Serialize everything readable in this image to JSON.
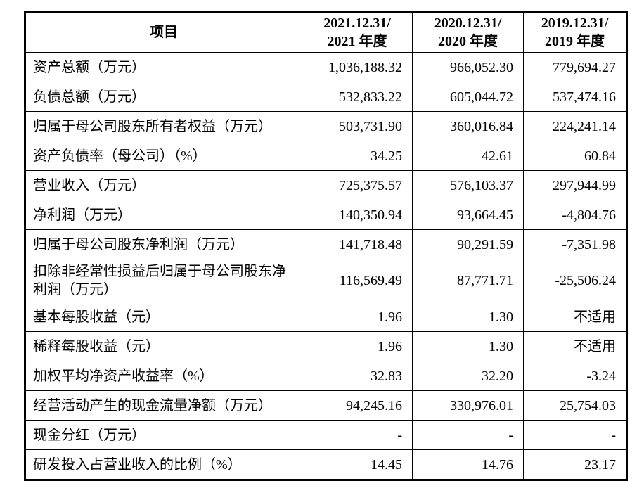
{
  "table": {
    "columns": [
      "项目",
      "2021.12.31/\n2021 年度",
      "2020.12.31/\n2020 年度",
      "2019.12.31/\n2019 年度"
    ],
    "rows": [
      {
        "label": "资产总额（万元）",
        "values": [
          "1,036,188.32",
          "966,052.30",
          "779,694.27"
        ]
      },
      {
        "label": "负债总额（万元）",
        "values": [
          "532,833.22",
          "605,044.72",
          "537,474.16"
        ]
      },
      {
        "label": "归属于母公司股东所有者权益（万元）",
        "values": [
          "503,731.90",
          "360,016.84",
          "224,241.14"
        ]
      },
      {
        "label": "资产负债率（母公司）（%）",
        "values": [
          "34.25",
          "42.61",
          "60.84"
        ]
      },
      {
        "label": "营业收入（万元）",
        "values": [
          "725,375.57",
          "576,103.37",
          "297,944.99"
        ]
      },
      {
        "label": "净利润（万元）",
        "values": [
          "140,350.94",
          "93,664.45",
          "-4,804.76"
        ]
      },
      {
        "label": "归属于母公司股东净利润（万元）",
        "values": [
          "141,718.48",
          "90,291.59",
          "-7,351.98"
        ]
      },
      {
        "label": "扣除非经常性损益后归属于母公司股东净利润（万元）",
        "values": [
          "116,569.49",
          "87,771.71",
          "-25,506.24"
        ]
      },
      {
        "label": "基本每股收益（元）",
        "values": [
          "1.96",
          "1.30",
          "不适用"
        ]
      },
      {
        "label": "稀释每股收益（元）",
        "values": [
          "1.96",
          "1.30",
          "不适用"
        ]
      },
      {
        "label": "加权平均净资产收益率（%）",
        "values": [
          "32.83",
          "32.20",
          "-3.24"
        ]
      },
      {
        "label": "经营活动产生的现金流量净额（万元）",
        "values": [
          "94,245.16",
          "330,976.01",
          "25,754.03"
        ]
      },
      {
        "label": "现金分红（万元）",
        "values": [
          "-",
          "-",
          "-"
        ]
      },
      {
        "label": "研发投入占营业收入的比例（%）",
        "values": [
          "14.45",
          "14.76",
          "23.17"
        ]
      }
    ],
    "year_keys": [
      "2021",
      "2020",
      "2019"
    ]
  }
}
